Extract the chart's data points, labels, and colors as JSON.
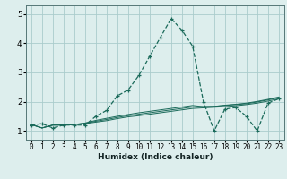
{
  "background_color": "#ddeeed",
  "grid_color": "#aacccc",
  "line_color": "#1a6a5a",
  "xlabel": "Humidex (Indice chaleur)",
  "ylim": [
    0.7,
    5.3
  ],
  "xlim": [
    -0.5,
    23.5
  ],
  "yticks": [
    1,
    2,
    3,
    4,
    5
  ],
  "xticks": [
    0,
    1,
    2,
    3,
    4,
    5,
    6,
    7,
    8,
    9,
    10,
    11,
    12,
    13,
    14,
    15,
    16,
    17,
    18,
    19,
    20,
    21,
    22,
    23
  ],
  "series": [
    [
      1.2,
      1.25,
      1.1,
      1.2,
      1.2,
      1.2,
      1.5,
      1.7,
      2.2,
      2.4,
      2.9,
      3.55,
      4.2,
      4.85,
      4.45,
      3.9,
      2.0,
      1.0,
      1.75,
      1.8,
      1.5,
      1.0,
      1.95,
      2.1
    ],
    [
      1.22,
      1.1,
      1.2,
      1.2,
      1.22,
      1.25,
      1.3,
      1.35,
      1.42,
      1.48,
      1.52,
      1.57,
      1.62,
      1.67,
      1.72,
      1.77,
      1.79,
      1.81,
      1.83,
      1.86,
      1.9,
      1.95,
      2.02,
      2.1
    ],
    [
      1.22,
      1.1,
      1.2,
      1.2,
      1.22,
      1.26,
      1.33,
      1.39,
      1.46,
      1.52,
      1.57,
      1.62,
      1.67,
      1.72,
      1.77,
      1.82,
      1.83,
      1.84,
      1.87,
      1.9,
      1.93,
      1.99,
      2.06,
      2.14
    ],
    [
      1.22,
      1.1,
      1.2,
      1.2,
      1.22,
      1.27,
      1.36,
      1.43,
      1.5,
      1.56,
      1.62,
      1.67,
      1.72,
      1.77,
      1.82,
      1.87,
      1.83,
      1.84,
      1.88,
      1.91,
      1.95,
      2.01,
      2.08,
      2.16
    ]
  ]
}
